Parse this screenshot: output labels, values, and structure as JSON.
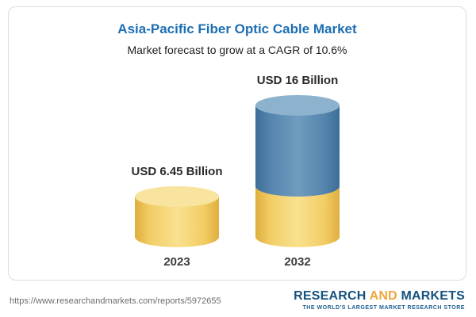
{
  "header": {
    "title": "Asia-Pacific Fiber Optic Cable Market",
    "subtitle": "Market forecast to grow at a CAGR of 10.6%"
  },
  "chart_data": {
    "type": "bar",
    "title": "Asia-Pacific Fiber Optic Cable Market",
    "subtitle": "Market forecast to grow at a CAGR of 10.6%",
    "categories": [
      "2023",
      "2032"
    ],
    "values": [
      6.45,
      16
    ],
    "unit": "USD Billion",
    "value_labels": [
      "USD 6.45 Billion",
      "USD 16 Billion"
    ],
    "cagr": "10.6%",
    "bar_style": "3d-cylinder",
    "legend": "none",
    "colors": {
      "bar_2023": "#f2cd66",
      "bar_2032_growth": "#5585ae",
      "bar_2032_base": "#f2cd66",
      "title_text": "#1d6fb4"
    }
  },
  "footer": {
    "url": "https://www.researchandmarkets.com/reports/5972655",
    "logo": {
      "word1": "RESEARCH",
      "word2": "AND",
      "word3": "MARKETS",
      "tagline": "THE WORLD'S LARGEST MARKET RESEARCH STORE"
    }
  }
}
